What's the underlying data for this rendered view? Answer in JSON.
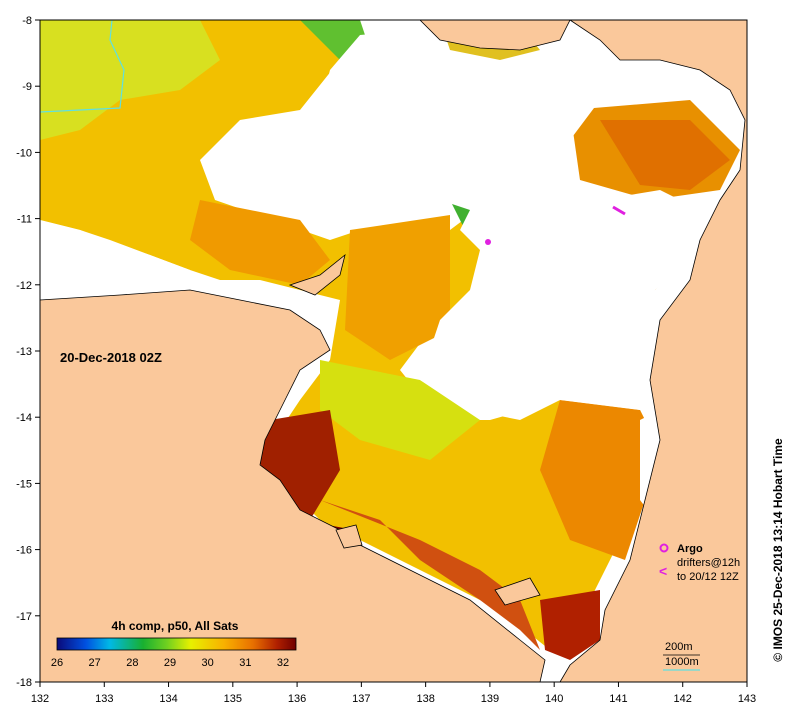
{
  "map": {
    "date_label": "20-Dec-2018 02Z",
    "x_ticks": [
      "132",
      "133",
      "134",
      "135",
      "136",
      "137",
      "138",
      "139",
      "140",
      "141",
      "142",
      "143"
    ],
    "y_ticks": [
      "-8",
      "-9",
      "-10",
      "-11",
      "-12",
      "-13",
      "-14",
      "-15",
      "-16",
      "-17",
      "-18"
    ],
    "colorbar": {
      "title": "4h comp, p50, All Sats",
      "ticks": [
        "26",
        "27",
        "28",
        "29",
        "30",
        "31",
        "32"
      ],
      "colors": [
        "#0a0a7a",
        "#0050e0",
        "#00b8e6",
        "#18b030",
        "#70d020",
        "#e8f000",
        "#f8b000",
        "#e87000",
        "#b02000",
        "#700000"
      ]
    },
    "legend": {
      "argo": "Argo",
      "drifters_line1": "drifters@12h",
      "drifters_line2": "to 20/12 12Z",
      "depth_200": "200m",
      "depth_1000": "1000m"
    },
    "side_label": "© IMOS 25-Dec-2018 13:14 Hobart Time",
    "land_color": "#fac89b"
  }
}
